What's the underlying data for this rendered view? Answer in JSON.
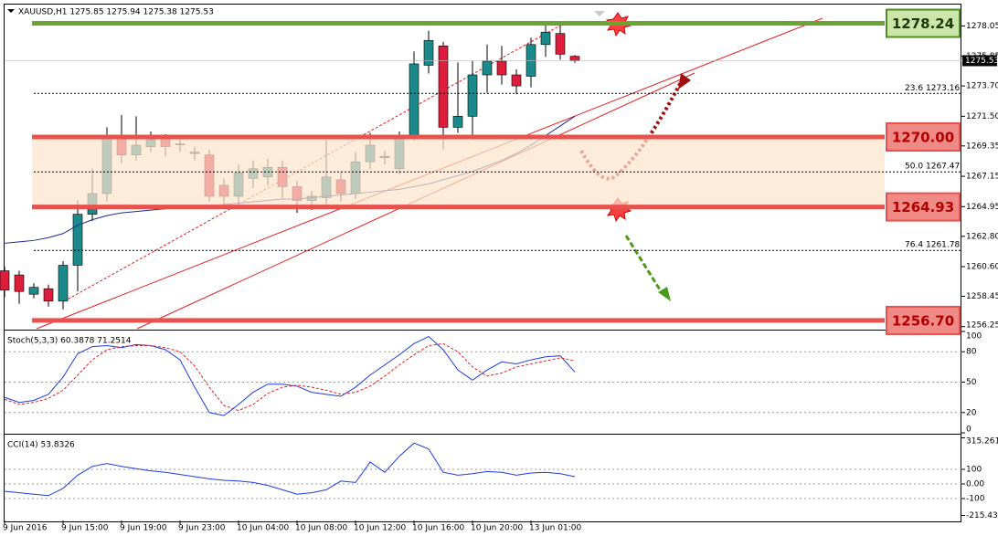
{
  "header": "XAUUSD,H1 1275.85 1275.94 1275.38 1275.53",
  "chart_data": [
    {
      "type": "candlestick",
      "categories": [
        "9 Jun 2016",
        null,
        null,
        null,
        "9 Jun 15:00",
        null,
        null,
        null,
        "9 Jun 19:00",
        null,
        null,
        null,
        "9 Jun 23:00",
        null,
        null,
        null,
        "10 Jun 04:00",
        null,
        null,
        null,
        "10 Jun 08:00",
        null,
        null,
        null,
        "10 Jun 12:00",
        null,
        null,
        null,
        "10 Jun 16:00",
        null,
        null,
        null,
        "10 Jun 20:00",
        null,
        null,
        null,
        "13 Jun 01:00",
        null,
        null,
        null
      ],
      "open": [
        1260.3,
        1260.0,
        1258.6,
        1259.0,
        1258.1,
        1260.7,
        1264.4,
        1265.9,
        1269.9,
        1268.7,
        1269.3,
        1269.9,
        1269.5,
        1268.9,
        1268.7,
        1266.5,
        1265.7,
        1267.0,
        1267.1,
        1267.8,
        1266.4,
        1265.4,
        1265.6,
        1266.9,
        1265.9,
        1268.2,
        1268.5,
        1267.7,
        1270.0,
        1275.2,
        1276.6,
        1270.7,
        1271.5,
        1274.5,
        1275.5,
        1274.5,
        1274.4,
        1276.7,
        1277.5,
        1275.85
      ],
      "high": [
        1260.6,
        1260.3,
        1259.4,
        1259.3,
        1261.0,
        1265.4,
        1267.7,
        1270.7,
        1271.6,
        1271.5,
        1270.4,
        1270.2,
        1270.0,
        1269.3,
        1269.1,
        1267.0,
        1268.0,
        1268.3,
        1268.4,
        1268.3,
        1266.8,
        1266.1,
        1269.8,
        1267.5,
        1268.9,
        1270.3,
        1269.0,
        1270.4,
        1276.2,
        1277.7,
        1276.9,
        1275.4,
        1275.5,
        1276.7,
        1276.6,
        1274.9,
        1277.2,
        1278.1,
        1278.2,
        1275.94
      ],
      "low": [
        1258.4,
        1257.9,
        1258.3,
        1257.7,
        1257.5,
        1258.8,
        1263.9,
        1265.3,
        1268.1,
        1268.3,
        1268.9,
        1268.6,
        1268.9,
        1268.3,
        1265.3,
        1265.0,
        1264.9,
        1266.3,
        1266.5,
        1265.6,
        1264.5,
        1264.7,
        1264.9,
        1265.3,
        1265.5,
        1267.7,
        1268.0,
        1267.3,
        1269.7,
        1274.6,
        1269.1,
        1270.3,
        1269.8,
        1273.2,
        1273.8,
        1273.1,
        1273.6,
        1275.8,
        1275.6,
        1275.38
      ],
      "close": [
        1258.9,
        1258.8,
        1259.1,
        1258.1,
        1260.7,
        1264.4,
        1265.9,
        1269.9,
        1268.7,
        1269.4,
        1269.8,
        1269.3,
        1269.5,
        1268.8,
        1265.7,
        1265.7,
        1267.4,
        1267.7,
        1267.8,
        1266.4,
        1265.4,
        1265.7,
        1267.1,
        1265.9,
        1268.2,
        1269.4,
        1268.6,
        1270.0,
        1275.3,
        1277.0,
        1270.7,
        1271.5,
        1274.5,
        1275.5,
        1274.5,
        1273.7,
        1276.7,
        1277.6,
        1276.0,
        1275.53
      ],
      "up_color": "#1a8a8a",
      "down_color": "#dc1e3c",
      "series": [
        {
          "color": "#1c2a8c",
          "values": [
            1262.3,
            1262.4,
            1262.5,
            1262.7,
            1263.0,
            1263.6,
            1264.0,
            1264.3,
            1264.5,
            1264.6,
            1264.7,
            1264.8,
            1264.9,
            1265.0,
            1265.0,
            1265.1,
            1265.2,
            1265.3,
            1265.4,
            1265.5,
            1265.5,
            1265.6,
            1265.7,
            1265.8,
            1265.9,
            1266.0,
            1266.1,
            1266.2,
            1266.4,
            1266.6,
            1266.9,
            1267.2,
            1267.5,
            1267.9,
            1268.3,
            1268.8,
            1269.4,
            1270.1,
            1270.8,
            1271.5
          ]
        }
      ],
      "ylim": [
        1256.1,
        1279.4
      ],
      "yticks": [
        1278.05,
        1275.85,
        {
          "value": 1273.7,
          "label": "1273.70"
        },
        {
          "value": 1271.5,
          "label": "1271.50"
        },
        1269.35,
        1267.15,
        1264.95,
        {
          "value": 1262.8,
          "label": "1262.80"
        },
        {
          "value": 1260.6,
          "label": "1260.60"
        },
        1258.45,
        1256.25
      ],
      "current_price": 1275.53,
      "levels": [
        {
          "value": 1278.24,
          "color": "#6aa532"
        },
        {
          "value": 1270.0,
          "label": "1270.00",
          "color": "#e8524e"
        },
        {
          "value": 1264.93,
          "color": "#e8524e"
        },
        {
          "value": 1256.7,
          "label": "1256.70",
          "color": "#e8524e"
        }
      ],
      "fib_levels": [
        {
          "ratio": "23.6",
          "value": 1273.16
        },
        {
          "ratio": "50.0",
          "value": 1267.47
        },
        {
          "ratio": "76.4",
          "value": 1261.78
        }
      ]
    },
    {
      "type": "line",
      "title": "Stoch(5,3,3) 60.3878 71.2514",
      "series": [
        {
          "color": "#1c3cdc",
          "values": [
            35,
            30,
            32,
            38,
            55,
            78,
            85,
            86,
            84,
            87,
            86,
            82,
            72,
            45,
            20,
            17,
            28,
            40,
            48,
            48,
            46,
            40,
            38,
            36,
            45,
            57,
            67,
            77,
            88,
            95,
            82,
            62,
            52,
            62,
            70,
            68,
            72,
            75,
            76,
            60
          ]
        },
        {
          "color": "#e02020",
          "dashed": true,
          "values": [
            33,
            28,
            30,
            34,
            42,
            57,
            72,
            82,
            85,
            86,
            86,
            84,
            80,
            66,
            45,
            27,
            22,
            28,
            39,
            45,
            47,
            45,
            42,
            38,
            40,
            46,
            56,
            67,
            77,
            86,
            88,
            80,
            65,
            56,
            59,
            65,
            68,
            71,
            74,
            71
          ]
        }
      ],
      "ylim": [
        0,
        100
      ],
      "yticks": [
        100,
        80,
        50,
        20,
        0
      ],
      "grid_values": [
        80,
        50,
        20
      ]
    },
    {
      "type": "line",
      "title": "CCI(14) 53.8326",
      "series": [
        {
          "color": "#1c3cdc",
          "values": [
            -50,
            -60,
            -70,
            -80,
            -30,
            60,
            120,
            140,
            120,
            105,
            90,
            80,
            65,
            50,
            35,
            25,
            20,
            10,
            -10,
            -40,
            -70,
            -60,
            -40,
            20,
            10,
            150,
            80,
            190,
            280,
            240,
            80,
            60,
            70,
            85,
            80,
            60,
            75,
            80,
            70,
            50
          ]
        }
      ],
      "ylim": [
        -250,
        325
      ],
      "yticks": [
        315.2613,
        100,
        {
          "value": 0,
          "label": "0.00"
        },
        -100,
        -215.433
      ],
      "grid_values": [
        100,
        0,
        -100
      ]
    }
  ]
}
